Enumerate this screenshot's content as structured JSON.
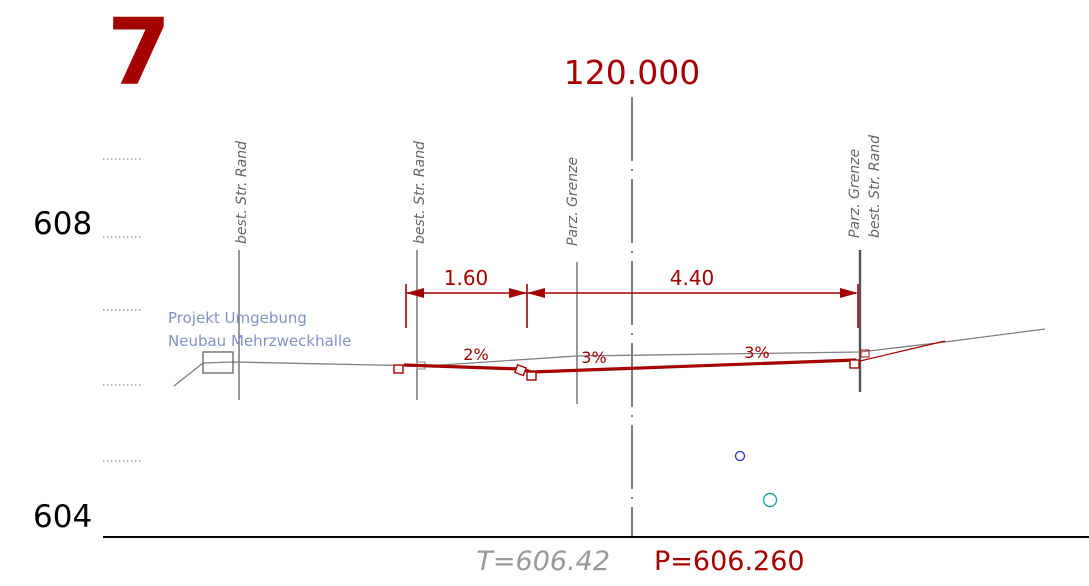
{
  "section_number": "7",
  "station": "120.000",
  "elevation_labels": {
    "upper": "608",
    "lower": "604"
  },
  "vertical_labels": {
    "left_edge": "best. Str. Rand",
    "road_edge": "best. Str. Rand",
    "parcel_left": "Parz. Grenze",
    "right_parcel": "Parz. Grenze",
    "right_edge": "best. Str. Rand"
  },
  "dimensions": {
    "left": "1.60",
    "right": "4.40"
  },
  "slopes": {
    "first": "2%",
    "second": "3%",
    "third": "3%"
  },
  "project_note": {
    "line1": "Projekt Umgebung",
    "line2": "Neubau Mehrzweckhalle"
  },
  "terrain_height": "T=606.42",
  "project_height": "P=606.260",
  "colors": {
    "accent": "#a50000",
    "terrain": "#808080",
    "project_note": "#7f93c7",
    "marker_blue": "#1f2fc8",
    "marker_teal": "#1aa8a0"
  }
}
